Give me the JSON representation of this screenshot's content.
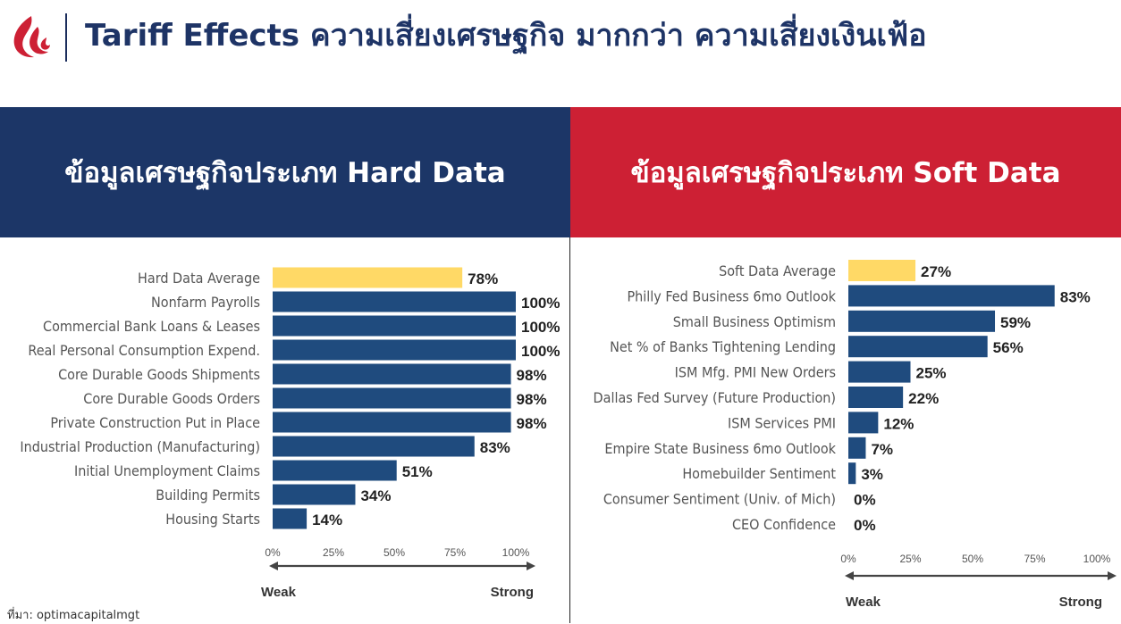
{
  "header": {
    "title": "Tariff Effects ความเสี่ยงเศรษฐกิจ มากกว่า ความเสี่ยงเงินเฟ้อ",
    "logo_icon": "flame-logo-icon"
  },
  "panels": {
    "hard": {
      "heading": "ข้อมูลเศรษฐกิจประเภท Hard Data",
      "color": "#1c3667"
    },
    "soft": {
      "heading": "ข้อมูลเศรษฐกิจประเภท Soft Data",
      "color": "#cd2034"
    }
  },
  "source": "ที่มา: optimacapitalmgt",
  "colors": {
    "bar": "#1f4b7e",
    "average_bar": "#ffd966",
    "label": "#555555",
    "value": "#222222"
  },
  "chart_data": [
    {
      "type": "bar",
      "orientation": "horizontal",
      "categories": [
        "Hard Data Average",
        "Nonfarm Payrolls",
        "Commercial Bank Loans & Leases",
        "Real Personal Consumption Expend.",
        "Core Durable Goods Shipments",
        "Core Durable Goods Orders",
        "Private Construction Put in Place",
        "Industrial Production (Manufacturing)",
        "Initial Unemployment Claims",
        "Building Permits",
        "Housing Starts"
      ],
      "values": [
        78,
        100,
        100,
        100,
        98,
        98,
        98,
        83,
        51,
        34,
        14
      ],
      "value_labels": [
        "78%",
        "100%",
        "100%",
        "100%",
        "98%",
        "98%",
        "98%",
        "83%",
        "51%",
        "34%",
        "14%"
      ],
      "highlight": [
        0
      ],
      "xlim": [
        0,
        100
      ],
      "xticks": [
        "0%",
        "25%",
        "50%",
        "75%",
        "100%"
      ],
      "scale_left": "Weak",
      "scale_right": "Strong"
    },
    {
      "type": "bar",
      "orientation": "horizontal",
      "categories": [
        "Soft Data Average",
        "Philly Fed Business 6mo Outlook",
        "Small Business Optimism",
        "Net % of Banks Tightening Lending",
        "ISM Mfg. PMI New Orders",
        "Dallas Fed Survey (Future Production)",
        "ISM Services PMI",
        "Empire State Business 6mo Outlook",
        "Homebuilder Sentiment",
        "Consumer Sentiment (Univ. of Mich)",
        "CEO Confidence"
      ],
      "values": [
        27,
        83,
        59,
        56,
        25,
        22,
        12,
        7,
        3,
        0,
        0
      ],
      "value_labels": [
        "27%",
        "83%",
        "59%",
        "56%",
        "25%",
        "22%",
        "12%",
        "7%",
        "3%",
        "0%",
        "0%"
      ],
      "highlight": [
        0
      ],
      "xlim": [
        0,
        100
      ],
      "xticks": [
        "0%",
        "25%",
        "50%",
        "75%",
        "100%"
      ],
      "scale_left": "Weak",
      "scale_right": "Strong"
    }
  ]
}
